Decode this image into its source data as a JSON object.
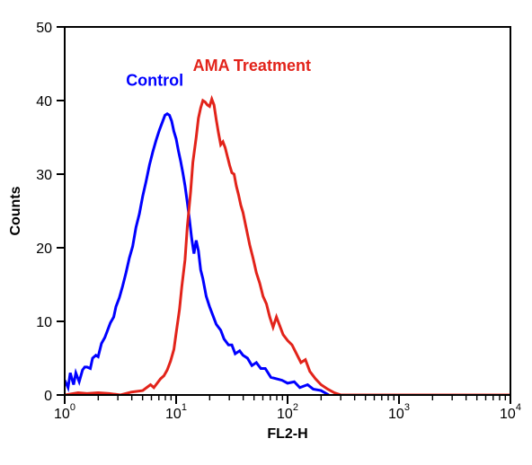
{
  "chart": {
    "type": "histogram-line",
    "background_color": "#ffffff",
    "plot_border_color": "#000000",
    "plot_border_width": 2,
    "axis_tick_color": "#000000",
    "axis_text_color": "#000000",
    "x_axis": {
      "label": "FL2-H",
      "label_fontsize": 16,
      "scale": "log",
      "min_exp": 0,
      "max_exp": 4,
      "tick_exps": [
        0,
        1,
        2,
        3,
        4
      ],
      "tick_fontsize": 16
    },
    "y_axis": {
      "label": "Counts",
      "label_fontsize": 16,
      "scale": "linear",
      "min": 0,
      "max": 50,
      "tick_step": 10,
      "ticks": [
        0,
        10,
        20,
        30,
        40,
        50
      ],
      "tick_fontsize": 16
    },
    "series": [
      {
        "name": "Control",
        "label": "Control",
        "color": "#0000ff",
        "line_width": 3,
        "label_pos_logx": 0.55,
        "label_pos_y": 42,
        "label_fontsize": 18,
        "data": [
          [
            0.0,
            2.0
          ],
          [
            0.03,
            1.0
          ],
          [
            0.05,
            3.0
          ],
          [
            0.08,
            1.4
          ],
          [
            0.1,
            3.0
          ],
          [
            0.13,
            1.8
          ],
          [
            0.16,
            3.4
          ],
          [
            0.18,
            3.8
          ],
          [
            0.2,
            3.8
          ],
          [
            0.23,
            3.6
          ],
          [
            0.25,
            5.0
          ],
          [
            0.28,
            5.4
          ],
          [
            0.3,
            5.2
          ],
          [
            0.33,
            7.0
          ],
          [
            0.36,
            7.8
          ],
          [
            0.38,
            8.6
          ],
          [
            0.41,
            9.8
          ],
          [
            0.44,
            10.6
          ],
          [
            0.46,
            12.0
          ],
          [
            0.49,
            13.2
          ],
          [
            0.52,
            14.8
          ],
          [
            0.55,
            16.6
          ],
          [
            0.58,
            18.6
          ],
          [
            0.61,
            20.2
          ],
          [
            0.64,
            22.8
          ],
          [
            0.67,
            24.6
          ],
          [
            0.7,
            27.0
          ],
          [
            0.73,
            29.0
          ],
          [
            0.76,
            31.2
          ],
          [
            0.79,
            33.0
          ],
          [
            0.82,
            34.6
          ],
          [
            0.85,
            36.0
          ],
          [
            0.88,
            37.2
          ],
          [
            0.9,
            38.0
          ],
          [
            0.92,
            38.2
          ],
          [
            0.94,
            38.0
          ],
          [
            0.96,
            37.2
          ],
          [
            0.98,
            35.8
          ],
          [
            1.0,
            34.8
          ],
          [
            1.02,
            33.2
          ],
          [
            1.04,
            31.8
          ],
          [
            1.06,
            30.2
          ],
          [
            1.08,
            28.4
          ],
          [
            1.1,
            26.2
          ],
          [
            1.12,
            23.8
          ],
          [
            1.14,
            21.2
          ],
          [
            1.16,
            19.2
          ],
          [
            1.18,
            21.0
          ],
          [
            1.2,
            19.6
          ],
          [
            1.22,
            17.0
          ],
          [
            1.24,
            15.8
          ],
          [
            1.27,
            13.4
          ],
          [
            1.3,
            12.0
          ],
          [
            1.33,
            10.8
          ],
          [
            1.36,
            9.6
          ],
          [
            1.4,
            8.8
          ],
          [
            1.43,
            7.6
          ],
          [
            1.47,
            6.8
          ],
          [
            1.5,
            6.8
          ],
          [
            1.53,
            5.6
          ],
          [
            1.57,
            6.0
          ],
          [
            1.6,
            5.4
          ],
          [
            1.64,
            5.0
          ],
          [
            1.68,
            4.0
          ],
          [
            1.72,
            4.4
          ],
          [
            1.76,
            3.6
          ],
          [
            1.8,
            3.6
          ],
          [
            1.85,
            2.4
          ],
          [
            1.9,
            2.2
          ],
          [
            1.95,
            2.0
          ],
          [
            2.0,
            1.6
          ],
          [
            2.06,
            1.8
          ],
          [
            2.11,
            1.0
          ],
          [
            2.18,
            1.4
          ],
          [
            2.23,
            0.8
          ],
          [
            2.3,
            0.6
          ],
          [
            2.37,
            0.0
          ]
        ]
      },
      {
        "name": "AMA Treatment",
        "label": "AMA Treatment",
        "color": "#e2231a",
        "line_width": 3,
        "label_pos_logx": 1.15,
        "label_pos_y": 44,
        "label_fontsize": 18,
        "data": [
          [
            0.0,
            0.0
          ],
          [
            0.12,
            0.3
          ],
          [
            0.2,
            0.2
          ],
          [
            0.3,
            0.3
          ],
          [
            0.4,
            0.2
          ],
          [
            0.5,
            0.0
          ],
          [
            0.6,
            0.4
          ],
          [
            0.7,
            0.6
          ],
          [
            0.77,
            1.4
          ],
          [
            0.8,
            1.0
          ],
          [
            0.83,
            1.6
          ],
          [
            0.86,
            2.2
          ],
          [
            0.89,
            2.6
          ],
          [
            0.92,
            3.4
          ],
          [
            0.95,
            4.6
          ],
          [
            0.98,
            6.2
          ],
          [
            1.0,
            8.4
          ],
          [
            1.03,
            11.6
          ],
          [
            1.05,
            14.6
          ],
          [
            1.08,
            18.4
          ],
          [
            1.1,
            22.8
          ],
          [
            1.13,
            27.6
          ],
          [
            1.15,
            31.6
          ],
          [
            1.18,
            35.0
          ],
          [
            1.2,
            37.6
          ],
          [
            1.22,
            39.0
          ],
          [
            1.24,
            40.0
          ],
          [
            1.26,
            39.8
          ],
          [
            1.28,
            39.4
          ],
          [
            1.3,
            39.2
          ],
          [
            1.32,
            40.2
          ],
          [
            1.34,
            39.4
          ],
          [
            1.36,
            37.4
          ],
          [
            1.38,
            35.6
          ],
          [
            1.4,
            34.0
          ],
          [
            1.42,
            34.4
          ],
          [
            1.44,
            33.6
          ],
          [
            1.46,
            32.4
          ],
          [
            1.48,
            31.2
          ],
          [
            1.5,
            30.2
          ],
          [
            1.52,
            30.0
          ],
          [
            1.54,
            28.4
          ],
          [
            1.56,
            27.2
          ],
          [
            1.58,
            25.8
          ],
          [
            1.6,
            24.8
          ],
          [
            1.63,
            22.6
          ],
          [
            1.66,
            20.4
          ],
          [
            1.69,
            18.6
          ],
          [
            1.72,
            16.6
          ],
          [
            1.75,
            15.2
          ],
          [
            1.78,
            13.4
          ],
          [
            1.81,
            12.4
          ],
          [
            1.84,
            10.6
          ],
          [
            1.87,
            9.2
          ],
          [
            1.9,
            10.6
          ],
          [
            1.93,
            9.4
          ],
          [
            1.96,
            8.2
          ],
          [
            2.0,
            7.4
          ],
          [
            2.04,
            6.8
          ],
          [
            2.08,
            5.6
          ],
          [
            2.12,
            4.4
          ],
          [
            2.16,
            4.8
          ],
          [
            2.2,
            3.2
          ],
          [
            2.25,
            2.2
          ],
          [
            2.3,
            1.4
          ],
          [
            2.36,
            0.8
          ],
          [
            2.42,
            0.3
          ],
          [
            2.48,
            0.0
          ],
          [
            3.0,
            0.0
          ],
          [
            4.0,
            0.0
          ]
        ]
      }
    ]
  }
}
